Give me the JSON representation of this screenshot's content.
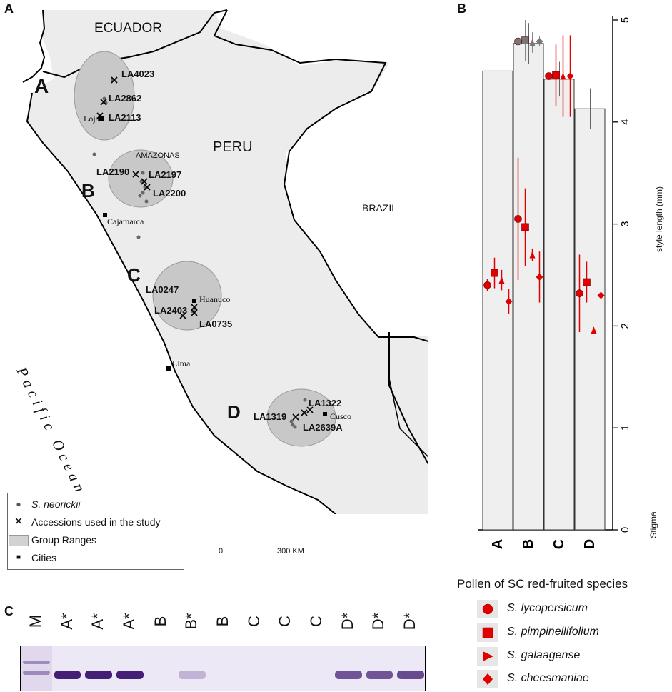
{
  "panel_letters": {
    "a": "A",
    "b": "B",
    "c": "C"
  },
  "map": {
    "countries": {
      "ecuador": "ECUADOR",
      "peru": "PERU",
      "brazil": "BRAZIL"
    },
    "ocean": "Pacific Ocean",
    "region": "AMAZONAS",
    "groups": {
      "a": "A",
      "b": "B",
      "c": "C",
      "d": "D"
    },
    "accessions": {
      "la4023": "LA4023",
      "la2862": "LA2862",
      "la2113": "LA2113",
      "la2190": "LA2190",
      "la2197": "LA2197",
      "la2200": "LA2200",
      "la0247": "LA0247",
      "la2403": "LA2403",
      "la0735": "LA0735",
      "la1322": "LA1322",
      "la1319": "LA1319",
      "la2639a": "LA2639A"
    },
    "cities": {
      "loja": "Loja",
      "cajamarca": "Cajamarca",
      "huanuco": "Huanuco",
      "lima": "Lima",
      "cusco": "Cusco"
    },
    "scale": {
      "start": "0",
      "end": "300 KM"
    },
    "legend": {
      "neorickii": "S. neorickii",
      "accessions": "Accessions used in the study",
      "ranges": "Group Ranges",
      "cities": "Cities"
    }
  },
  "chart_data": {
    "type": "bar",
    "categories": [
      "A",
      "B",
      "C",
      "D"
    ],
    "values": [
      4.5,
      4.77,
      4.42,
      4.13
    ],
    "errors": [
      0.1,
      0.2,
      0.17,
      0.2
    ],
    "ylim": [
      0,
      5
    ],
    "yticks": [
      "0",
      "1",
      "2",
      "3",
      "4",
      "5"
    ],
    "ylabel": "style length (mm)",
    "stigma_label": "Stigma",
    "colors": {
      "bar": "#efefef",
      "bar_edge": "#333333",
      "pollen": "#e00000",
      "neorickii": "#777777"
    },
    "neorickii_pollen": [
      {
        "category": "B",
        "shape": "circle",
        "value": 4.79,
        "error": 0.05
      },
      {
        "category": "B",
        "shape": "square",
        "value": 4.8,
        "error": 0.2
      },
      {
        "category": "B",
        "shape": "triangle",
        "value": 4.78,
        "error": 0.1
      },
      {
        "category": "B",
        "shape": "diamond",
        "value": 4.79,
        "error": 0.05
      }
    ],
    "series": [
      {
        "name": "S. lycopersicum",
        "shape": "circle",
        "values": [
          2.4,
          3.05,
          4.45,
          2.32
        ],
        "errors": [
          0.06,
          0.6,
          0.0,
          0.38
        ]
      },
      {
        "name": "S. pimpinellifolium",
        "shape": "square",
        "values": [
          2.52,
          2.97,
          4.46,
          2.43
        ],
        "errors": [
          0.15,
          0.38,
          0.3,
          0.2
        ]
      },
      {
        "name": "S. galaagense",
        "shape": "triangle",
        "values": [
          2.45,
          2.7,
          4.45,
          1.96
        ],
        "errors": [
          0.1,
          0.06,
          0.4,
          0.0
        ]
      },
      {
        "name": "S. cheesmaniae",
        "shape": "diamond",
        "values": [
          2.24,
          2.48,
          4.45,
          2.3
        ],
        "errors": [
          0.12,
          0.25,
          0.4,
          0.0
        ]
      }
    ]
  },
  "pollen_legend": {
    "title": "Pollen of SC red-fruited species",
    "items": [
      "S. lycopersicum",
      "S. pimpinellifolium",
      "S. galaagense",
      "S. cheesmaniae"
    ]
  },
  "gel": {
    "lanes": [
      "M",
      "A*",
      "A*",
      "A*",
      "B",
      "B*",
      "B",
      "C",
      "C",
      "C",
      "D*",
      "D*",
      "D*"
    ],
    "band_intensity": [
      0.4,
      0.95,
      0.95,
      0.95,
      0.0,
      0.25,
      0.0,
      0.0,
      0.0,
      0.0,
      0.7,
      0.7,
      0.75
    ]
  }
}
